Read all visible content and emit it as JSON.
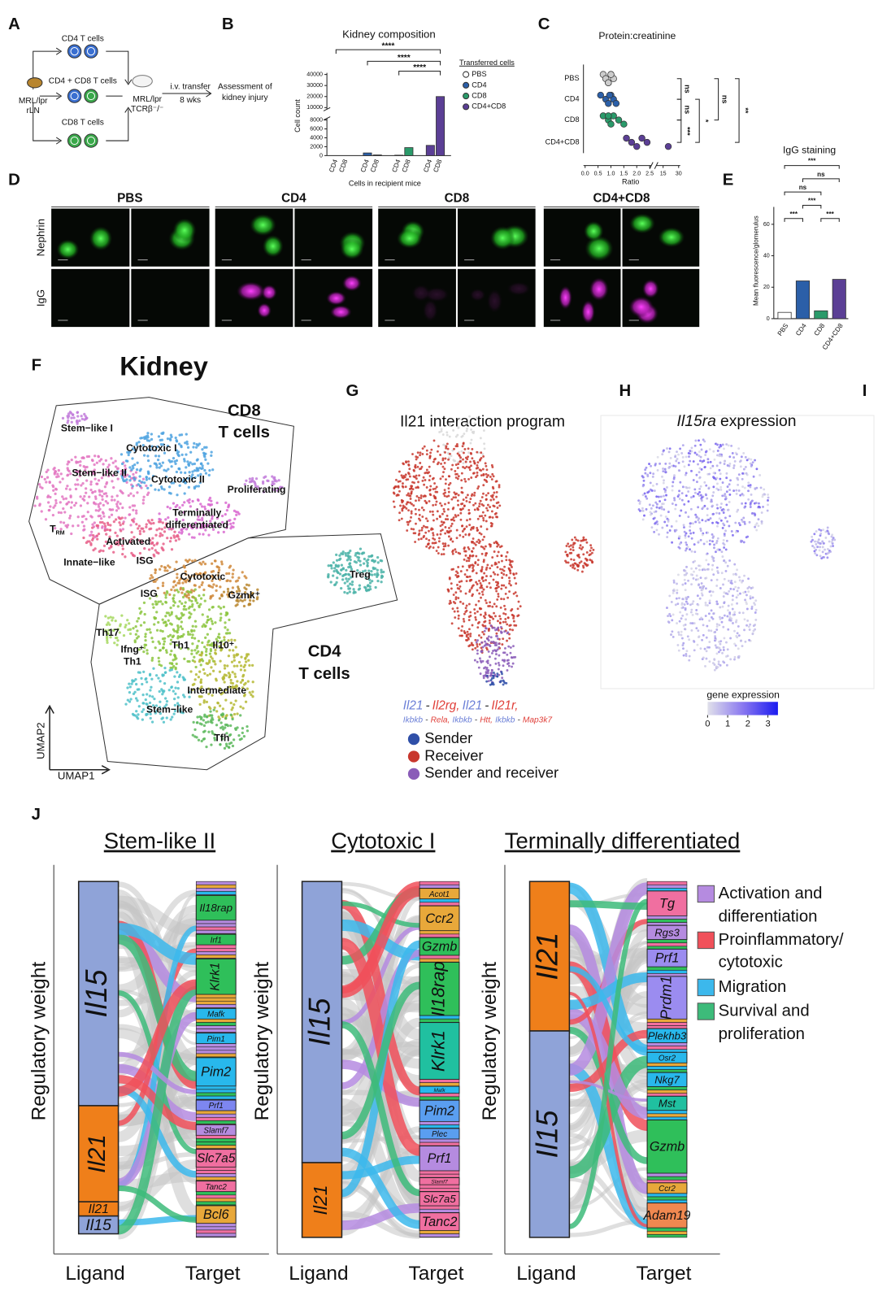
{
  "panel_a": {
    "letter": "A",
    "cd4_cells": "CD4 T cells",
    "cd4_cd8_cells": "CD4 + CD8 T cells",
    "cd8_cells": "CD8 T cells",
    "donor": [
      "MRL/lpr",
      "rLN"
    ],
    "recipient": [
      "MRL/lpr",
      "TCRβ⁻/⁻"
    ],
    "transfer": "i.v. transfer",
    "duration": "8 wks",
    "outcome": [
      "Assessment of",
      "kidney injury"
    ]
  },
  "panel_b": {
    "letter": "B",
    "title": "Kidney composition",
    "y_label": "Cell count",
    "x_label": "Cells in recipient mice",
    "groups": [
      "PBS",
      "CD4",
      "CD8",
      "CD4+CD8"
    ],
    "group_colors": [
      "#ffffff",
      "#2b5fa8",
      "#2a9a6a",
      "#5b3f95"
    ],
    "categories": [
      "CD4",
      "CD8",
      "CD4",
      "CD8",
      "CD4",
      "CD8",
      "CD4",
      "CD8"
    ],
    "values": [
      0,
      0,
      600,
      150,
      100,
      1800,
      2300,
      20000
    ],
    "y_lower_lim": [
      0,
      8000
    ],
    "y_upper_lim": [
      10000,
      40000
    ],
    "y_lower_ticks": [
      0,
      2000,
      4000,
      6000,
      8000
    ],
    "y_upper_ticks": [
      10000,
      20000,
      30000,
      40000
    ],
    "legend_title": "Transferred cells",
    "significance": [
      "****",
      "****",
      "****"
    ]
  },
  "panel_c": {
    "letter": "C",
    "title": "Protein:creatinine",
    "x_label": "Ratio",
    "categories": [
      "PBS",
      "CD4",
      "CD8",
      "CD4+CD8"
    ],
    "group_colors": [
      "#cccccc",
      "#2b5fa8",
      "#2a9a6a",
      "#5b3f95"
    ],
    "points": [
      [
        0.7,
        0.8,
        0.9,
        1.0,
        1.1,
        0.9,
        1.0
      ],
      [
        0.6,
        0.8,
        0.9,
        1.0,
        1.1,
        1.2,
        0.95
      ],
      [
        0.7,
        0.9,
        1.0,
        1.1,
        1.3,
        1.5,
        0.9
      ],
      [
        1.6,
        1.8,
        2.0,
        2.2,
        2.4,
        20
      ]
    ],
    "x_lower_lim": [
      0,
      2.5
    ],
    "x_upper_lim": [
      10,
      30
    ],
    "x_lower_ticks": [
      {
        "value": 0,
        "label": "0.0"
      },
      0.5,
      {
        "value": 1,
        "label": "1.0"
      },
      1.5,
      {
        "value": 2,
        "label": "2.0"
      },
      2.5
    ],
    "x_upper_ticks": [
      15,
      30
    ],
    "significance": [
      "ns",
      "ns",
      "***",
      "*",
      "ns",
      "**"
    ]
  },
  "panel_d": {
    "letter": "D",
    "columns": [
      "PBS",
      "CD4",
      "CD8",
      "CD4+CD8"
    ],
    "column_colors": [
      "#111111",
      "#3a78c2",
      "#2e9e6e",
      "#8a5cc0"
    ],
    "rows": [
      "Nephrin",
      "IgG"
    ]
  },
  "panel_e": {
    "letter": "E",
    "title": "IgG staining",
    "y_label": "Mean fluorescence/glomerulus",
    "categories": [
      "PBS",
      "CD4",
      "CD8",
      "CD4+CD8"
    ],
    "colors": [
      "#ffffff",
      "#2b5fa8",
      "#2a9a6a",
      "#5b3f95"
    ],
    "values": [
      4,
      24,
      5,
      25
    ],
    "ylim": [
      0,
      70
    ],
    "yticks": [
      0,
      20,
      40,
      60
    ],
    "significance": [
      "***",
      "***",
      "***",
      "ns",
      "ns",
      "***"
    ]
  },
  "panel_f": {
    "letter": "F",
    "title": "Kidney",
    "cd8_label": [
      "CD8",
      "T cells"
    ],
    "cd4_label": [
      "CD4",
      "T cells"
    ],
    "trm": {
      "base": "T",
      "sub": "RM"
    },
    "clusters": [
      [
        "Stem−like I"
      ],
      [
        "Cytotoxic I"
      ],
      [
        "Stem−like II"
      ],
      [
        "Cytotoxic II"
      ],
      [
        "Proliferating"
      ],
      [
        "Terminally",
        "differentiated"
      ],
      [
        "Activated"
      ],
      [
        "Innate−like"
      ],
      [
        "ISG"
      ],
      [
        "Cytotoxic"
      ],
      [
        "ISG"
      ],
      [
        "Gzmk⁺"
      ],
      [
        "Treg"
      ],
      [
        "Th17"
      ],
      [
        "Ifng⁺",
        "Th1"
      ],
      [
        "Th1"
      ],
      [
        "Il10⁺"
      ],
      [
        "Intermediate"
      ],
      [
        "Stem−like"
      ],
      [
        "Tfh"
      ]
    ],
    "axis_y": "UMAP2",
    "axis_x": "UMAP1"
  },
  "panel_g": {
    "letter": "G",
    "title": "Il21 interaction program",
    "caption_line1": [
      "Il21",
      "-",
      "Il2rg,",
      "Il21",
      "-",
      "Il21r,"
    ],
    "caption_line2": [
      "Ikbkb",
      "-",
      "Rela,",
      "Ikbkb",
      "-",
      "Htt,",
      "Ikbkb",
      "-",
      "Map3k7"
    ],
    "legend": [
      "Sender",
      "Receiver",
      "Sender and receiver"
    ],
    "legend_colors": [
      "#2f4fa8",
      "#c8372d",
      "#8a5cb8"
    ]
  },
  "panel_h": {
    "letter": "H",
    "title_gene": "Il15ra",
    "title_rest": "expression",
    "colorbar_label": "gene expression",
    "colorbar_lim": [
      0,
      3.5
    ],
    "colorbar_ticks": [
      0,
      1,
      2,
      3
    ]
  },
  "panel_i": {
    "letter": "I"
  },
  "panel_j": {
    "letter": "J",
    "y_label": "Regulatory weight",
    "x_labels": [
      "Ligand",
      "Target"
    ],
    "plots": [
      {
        "title": "Stem-like II",
        "ligands": [
          {
            "name": "Il15",
            "color": "#8fa3d8",
            "weight": 0.63
          },
          {
            "name": "Il21",
            "color": "#ef7f1a",
            "weight": 0.27
          },
          {
            "name": "Il21",
            "color": "#ef7f1a",
            "weight": 0.04
          },
          {
            "name": "Il15",
            "color": "#8fa3d8",
            "weight": 0.05
          }
        ],
        "targets": [
          {
            "name": "Il18rap",
            "color": "#2fbf5a",
            "weight": 0.07
          },
          {
            "name": "Irf1",
            "color": "#2fbf5a",
            "weight": 0.03
          },
          {
            "name": "Klrk1",
            "color": "#2fbf5a",
            "weight": 0.1
          },
          {
            "name": "Mafk",
            "color": "#28b8ec",
            "weight": 0.03
          },
          {
            "name": "Pim1",
            "color": "#28b8ec",
            "weight": 0.03
          },
          {
            "name": "Pim2",
            "color": "#28b8ec",
            "weight": 0.08
          },
          {
            "name": "Prf1",
            "color": "#7d86f0",
            "weight": 0.03
          },
          {
            "name": "Slamf7",
            "color": "#b58be0",
            "weight": 0.03
          },
          {
            "name": "Slc7a5",
            "color": "#f06fa0",
            "weight": 0.05
          },
          {
            "name": "Tanc2",
            "color": "#f06fa0",
            "weight": 0.03
          },
          {
            "name": "Bcl6",
            "color": "#e8a83a",
            "weight": 0.05
          }
        ]
      },
      {
        "title": "Cytotoxic I",
        "ligands": [
          {
            "name": "Il15",
            "color": "#8fa3d8",
            "weight": 0.79
          },
          {
            "name": "Il21",
            "color": "#ef7f1a",
            "weight": 0.21
          }
        ],
        "targets": [
          {
            "name": "Acot1",
            "color": "#e8a83a",
            "weight": 0.03
          },
          {
            "name": "Ccr2",
            "color": "#e8a83a",
            "weight": 0.07
          },
          {
            "name": "Gzmb",
            "color": "#2fbf5a",
            "weight": 0.05
          },
          {
            "name": "Il18rap",
            "color": "#2fbf5a",
            "weight": 0.15
          },
          {
            "name": "Klrk1",
            "color": "#20c0a0",
            "weight": 0.16
          },
          {
            "name": "Mafk",
            "color": "#28b8ec",
            "weight": 0.02
          },
          {
            "name": "Pim2",
            "color": "#5a9ef0",
            "weight": 0.06
          },
          {
            "name": "Plec",
            "color": "#5a9ef0",
            "weight": 0.03
          },
          {
            "name": "Prf1",
            "color": "#b58be0",
            "weight": 0.07
          },
          {
            "name": "Slamf7",
            "color": "#f06fa0",
            "weight": 0.02
          },
          {
            "name": "Slc7a5",
            "color": "#f06fa0",
            "weight": 0.04
          },
          {
            "name": "Tanc2",
            "color": "#f06fa0",
            "weight": 0.05
          }
        ]
      },
      {
        "title": "Terminally differentiated",
        "ligands": [
          {
            "name": "Il21",
            "color": "#ef7f1a",
            "weight": 0.42
          },
          {
            "name": "Il15",
            "color": "#8fa3d8",
            "weight": 0.58
          }
        ],
        "targets": [
          {
            "name": "Tg",
            "color": "#f06fa0",
            "weight": 0.07
          },
          {
            "name": "Rgs3",
            "color": "#b58be0",
            "weight": 0.04
          },
          {
            "name": "Prf1",
            "color": "#9b8cf0",
            "weight": 0.05
          },
          {
            "name": "Prdm1",
            "color": "#9b8cf0",
            "weight": 0.12
          },
          {
            "name": "Plekhb3",
            "color": "#28b8ec",
            "weight": 0.04
          },
          {
            "name": "Osr2",
            "color": "#28b8ec",
            "weight": 0.03
          },
          {
            "name": "Nkg7",
            "color": "#28b8ec",
            "weight": 0.04
          },
          {
            "name": "Mst",
            "color": "#20c0a0",
            "weight": 0.04
          },
          {
            "name": "Gzmb",
            "color": "#2fbf5a",
            "weight": 0.15
          },
          {
            "name": "Ccr2",
            "color": "#e8a83a",
            "weight": 0.03
          },
          {
            "name": "Adam19",
            "color": "#f08850",
            "weight": 0.07
          }
        ]
      }
    ],
    "legend": [
      [
        "Activation and",
        "differentiation"
      ],
      [
        "Proinflammatory/",
        "cytotoxic"
      ],
      [
        "Migration"
      ],
      [
        "Survival and",
        "proliferation"
      ]
    ],
    "legend_colors": [
      "#b58be0",
      "#f0505a",
      "#3cb8ec",
      "#3dbb7a"
    ]
  }
}
